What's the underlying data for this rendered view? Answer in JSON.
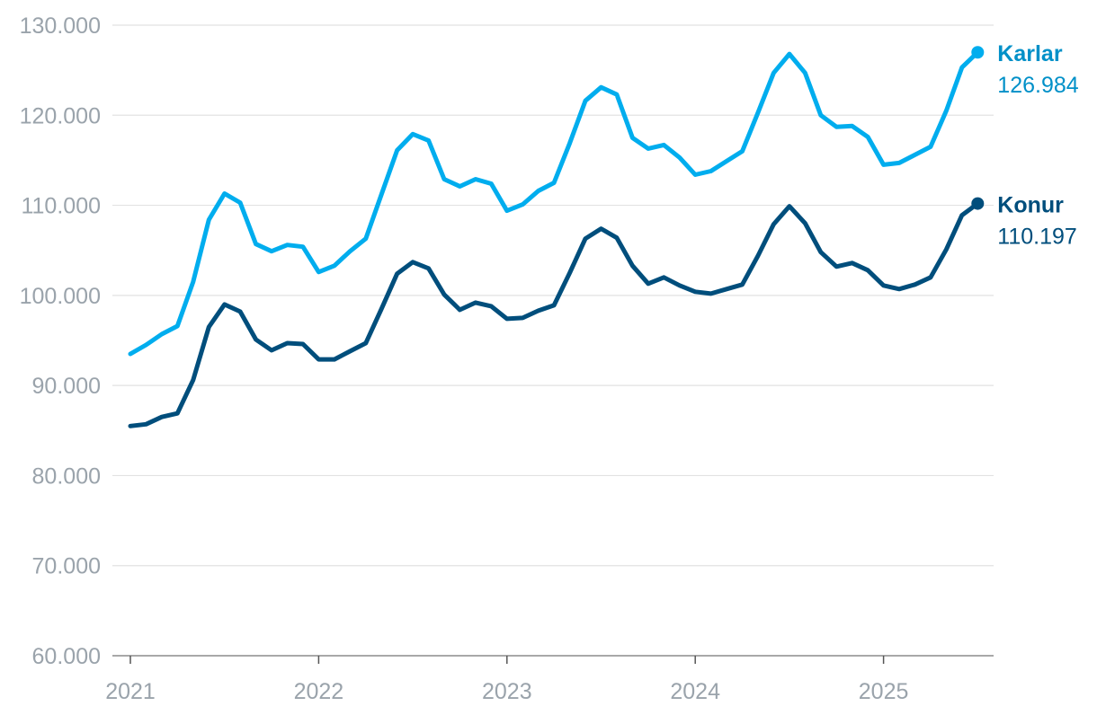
{
  "chart_data": {
    "type": "line",
    "title": "",
    "xlabel": "",
    "ylabel": "",
    "ylim": [
      60000,
      130000
    ],
    "yticks": [
      {
        "value": 60000,
        "label": "60.000"
      },
      {
        "value": 70000,
        "label": "70.000"
      },
      {
        "value": 80000,
        "label": "80.000"
      },
      {
        "value": 90000,
        "label": "90.000"
      },
      {
        "value": 100000,
        "label": "100.000"
      },
      {
        "value": 110000,
        "label": "110.000"
      },
      {
        "value": 120000,
        "label": "120.000"
      },
      {
        "value": 130000,
        "label": "130.000"
      }
    ],
    "xticks": [
      {
        "value": "2021-01",
        "label": "2021"
      },
      {
        "value": "2022-01",
        "label": "2022"
      },
      {
        "value": "2023-01",
        "label": "2023"
      },
      {
        "value": "2024-01",
        "label": "2024"
      },
      {
        "value": "2025-01",
        "label": "2025"
      }
    ],
    "grid": true,
    "x": [
      "2021-01",
      "2021-02",
      "2021-03",
      "2021-04",
      "2021-05",
      "2021-06",
      "2021-07",
      "2021-08",
      "2021-09",
      "2021-10",
      "2021-11",
      "2021-12",
      "2022-01",
      "2022-02",
      "2022-03",
      "2022-04",
      "2022-05",
      "2022-06",
      "2022-07",
      "2022-08",
      "2022-09",
      "2022-10",
      "2022-11",
      "2022-12",
      "2023-01",
      "2023-02",
      "2023-03",
      "2023-04",
      "2023-05",
      "2023-06",
      "2023-07",
      "2023-08",
      "2023-09",
      "2023-10",
      "2023-11",
      "2023-12",
      "2024-01",
      "2024-02",
      "2024-03",
      "2024-04",
      "2024-05",
      "2024-06",
      "2024-07",
      "2024-08",
      "2024-09",
      "2024-10",
      "2024-11",
      "2024-12",
      "2025-01",
      "2025-02",
      "2025-03",
      "2025-04",
      "2025-05",
      "2025-06",
      "2025-07"
    ],
    "series": [
      {
        "name": "Karlar",
        "end_value": "126.984",
        "color": "#00adee",
        "label_color": "#0090c8",
        "values": [
          93500,
          94500,
          95700,
          96600,
          101500,
          108400,
          111300,
          110300,
          105700,
          104900,
          105600,
          105400,
          102600,
          103300,
          104900,
          106300,
          111200,
          116100,
          117900,
          117200,
          112900,
          112100,
          112900,
          112400,
          109400,
          110100,
          111600,
          112500,
          116900,
          121600,
          123100,
          122300,
          117500,
          116300,
          116700,
          115300,
          113400,
          113800,
          114900,
          116000,
          120300,
          124700,
          126800,
          124700,
          120000,
          118700,
          118800,
          117600,
          114500,
          114700,
          115600,
          116500,
          120500,
          125300,
          126984
        ]
      },
      {
        "name": "Konur",
        "end_value": "110.197",
        "color": "#004e7c",
        "label_color": "#004e7c",
        "values": [
          85500,
          85700,
          86500,
          86900,
          90600,
          96500,
          99000,
          98200,
          95100,
          93900,
          94700,
          94600,
          92900,
          92900,
          93800,
          94700,
          98500,
          102400,
          103700,
          103000,
          100100,
          98400,
          99200,
          98800,
          97400,
          97500,
          98300,
          98900,
          102500,
          106300,
          107400,
          106400,
          103300,
          101300,
          102000,
          101100,
          100400,
          100200,
          100700,
          101200,
          104400,
          107900,
          109900,
          108000,
          104800,
          103200,
          103600,
          102800,
          101100,
          100700,
          101200,
          102000,
          105100,
          108900,
          110197
        ]
      }
    ]
  }
}
